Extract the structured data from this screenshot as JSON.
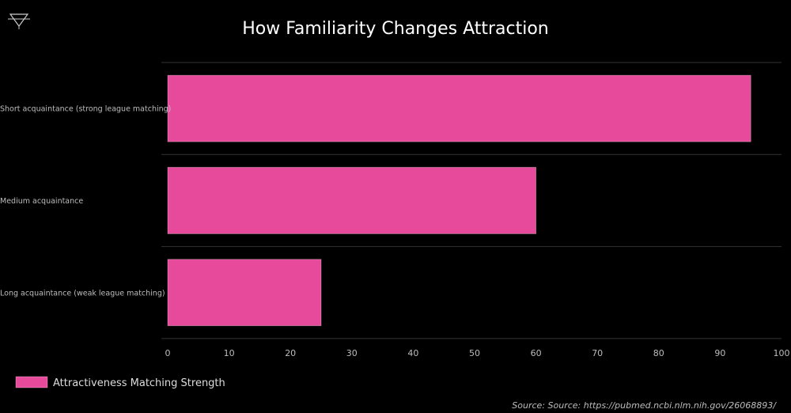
{
  "chart_data": {
    "type": "bar",
    "orientation": "horizontal",
    "title": "How Familiarity Changes Attraction",
    "categories": [
      "Short acquaintance (strong league matching)",
      "Medium acquaintance",
      "Long acquaintance (weak league matching)"
    ],
    "series": [
      {
        "name": "Attractiveness Matching Strength",
        "values": [
          95,
          60,
          25
        ],
        "color": "#e84a9b"
      }
    ],
    "xlim": [
      0,
      100
    ],
    "xticks": [
      0,
      10,
      20,
      30,
      40,
      50,
      60,
      70,
      80,
      90,
      100
    ],
    "xlabel": "",
    "ylabel": "",
    "grid": true,
    "legend_position": "bottom-left",
    "source": "Source: Source: https://pubmed.ncbi.nlm.nih.gov/26068893/"
  },
  "colors": {
    "background": "#000000",
    "bar": "#e84a9b",
    "gridline": "#333333",
    "text": "#bdbdbd"
  },
  "logo": {
    "icon": "triangle-logo-icon"
  }
}
